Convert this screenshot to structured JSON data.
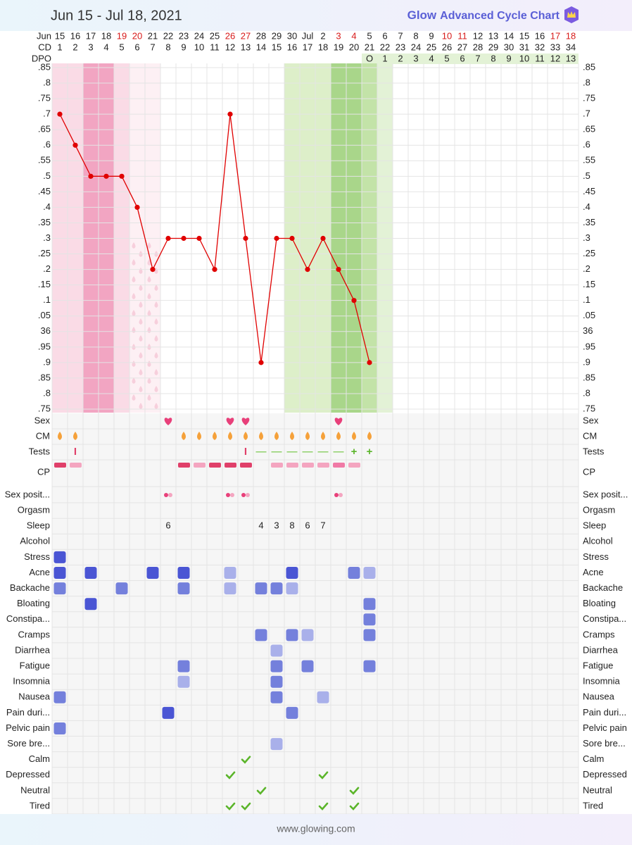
{
  "header": {
    "title": "Jun 15 - Jul 18, 2021",
    "brand": "Glow",
    "subtitle": "Advanced Cycle Chart"
  },
  "footer": "www.glowing.com",
  "chart_data": {
    "type": "line",
    "row_labels": {
      "date": "Jun",
      "cd": "CD",
      "dpo": "DPO"
    },
    "categories": [
      "15",
      "16",
      "17",
      "18",
      "19",
      "20",
      "21",
      "22",
      "23",
      "24",
      "25",
      "26",
      "27",
      "28",
      "29",
      "30",
      "Jul",
      "2",
      "3",
      "4",
      "5",
      "6",
      "7",
      "8",
      "9",
      "10",
      "11",
      "12",
      "13",
      "14",
      "15",
      "16",
      "17",
      "18"
    ],
    "category_colors": [
      "#222",
      "#222",
      "#222",
      "#222",
      "#d81b1b",
      "#d81b1b",
      "#222",
      "#222",
      "#222",
      "#222",
      "#222",
      "#d81b1b",
      "#d81b1b",
      "#222",
      "#222",
      "#222",
      "#222",
      "#222",
      "#d81b1b",
      "#d81b1b",
      "#222",
      "#222",
      "#222",
      "#222",
      "#222",
      "#d81b1b",
      "#d81b1b",
      "#222",
      "#222",
      "#222",
      "#222",
      "#222",
      "#d81b1b",
      "#d81b1b"
    ],
    "cd": [
      1,
      2,
      3,
      4,
      5,
      6,
      7,
      8,
      9,
      10,
      11,
      12,
      13,
      14,
      15,
      16,
      17,
      18,
      19,
      20,
      21,
      22,
      23,
      24,
      25,
      26,
      27,
      28,
      29,
      30,
      31,
      32,
      33,
      34
    ],
    "dpo": [
      null,
      null,
      null,
      null,
      null,
      null,
      null,
      null,
      null,
      null,
      null,
      null,
      null,
      null,
      null,
      null,
      null,
      null,
      null,
      null,
      "O",
      1,
      2,
      3,
      4,
      5,
      6,
      7,
      8,
      9,
      10,
      11,
      12,
      13
    ],
    "dpo_color": "#e3f2d6",
    "column_shading": [
      "#fadbe6",
      "#fadbe6",
      "#f2a5c2",
      "#f2a5c2",
      "#fadbe6",
      "#fdf0f4",
      "#fdf0f4",
      null,
      null,
      null,
      null,
      null,
      null,
      null,
      null,
      "#ddefc9",
      "#ddefc9",
      "#ddefc9",
      "#a9d68a",
      "#a9d68a",
      "#c3e3a8",
      "#e3f2d6",
      null,
      null,
      null,
      null,
      null,
      null,
      null,
      null,
      null,
      null,
      null,
      null
    ],
    "values": [
      36.7,
      36.6,
      36.5,
      36.5,
      36.5,
      36.4,
      36.2,
      36.3,
      36.3,
      36.3,
      36.2,
      36.7,
      36.3,
      35.9,
      36.3,
      36.3,
      36.2,
      36.3,
      36.2,
      36.1,
      35.9,
      null,
      null,
      null,
      null,
      null,
      null,
      null,
      null,
      null,
      null,
      null,
      null,
      null
    ],
    "color": "#e00000",
    "ylim": [
      35.75,
      36.85
    ],
    "yticks": [
      {
        "value": 36.85,
        "label": ".85"
      },
      {
        "value": 36.8,
        "label": ".8"
      },
      {
        "value": 36.75,
        "label": ".75"
      },
      {
        "value": 36.7,
        "label": ".7"
      },
      {
        "value": 36.65,
        "label": ".65"
      },
      {
        "value": 36.6,
        "label": ".6"
      },
      {
        "value": 36.55,
        "label": ".55"
      },
      {
        "value": 36.5,
        "label": ".5"
      },
      {
        "value": 36.45,
        "label": ".45"
      },
      {
        "value": 36.4,
        "label": ".4"
      },
      {
        "value": 36.35,
        "label": ".35"
      },
      {
        "value": 36.3,
        "label": ".3"
      },
      {
        "value": 36.25,
        "label": ".25"
      },
      {
        "value": 36.2,
        "label": ".2"
      },
      {
        "value": 36.15,
        "label": ".15"
      },
      {
        "value": 36.1,
        "label": ".1"
      },
      {
        "value": 36.05,
        "label": ".05"
      },
      36,
      {
        "value": 35.95,
        "label": ".95"
      },
      {
        "value": 35.9,
        "label": ".9"
      },
      {
        "value": 35.85,
        "label": ".85"
      },
      {
        "value": 35.8,
        "label": ".8"
      },
      {
        "value": 35.75,
        "label": ".75"
      }
    ],
    "grid": true
  },
  "symptoms": {
    "rows": [
      {
        "label": "Sex",
        "type": "heart",
        "color": "#e8407a",
        "marks": [
          {
            "cd": 8
          },
          {
            "cd": 12
          },
          {
            "cd": 13
          },
          {
            "cd": 19
          }
        ]
      },
      {
        "label": "CM",
        "type": "drop",
        "color": "#f5a13a",
        "marks": [
          {
            "cd": 1
          },
          {
            "cd": 2
          },
          {
            "cd": 9
          },
          {
            "cd": 10
          },
          {
            "cd": 11
          },
          {
            "cd": 12
          },
          {
            "cd": 13
          },
          {
            "cd": 14
          },
          {
            "cd": 15
          },
          {
            "cd": 16
          },
          {
            "cd": 17
          },
          {
            "cd": 18
          },
          {
            "cd": 19
          },
          {
            "cd": 20
          },
          {
            "cd": 21
          }
        ]
      },
      {
        "label": "Tests",
        "type": "text",
        "marks": [
          {
            "cd": 2,
            "text": "I",
            "color": "#e0406a"
          },
          {
            "cd": 13,
            "text": "I",
            "color": "#e0406a"
          },
          {
            "cd": 14,
            "text": "—",
            "color": "#8fd06a"
          },
          {
            "cd": 15,
            "text": "—",
            "color": "#8fd06a"
          },
          {
            "cd": 16,
            "text": "—",
            "color": "#8fd06a"
          },
          {
            "cd": 17,
            "text": "—",
            "color": "#8fd06a"
          },
          {
            "cd": 18,
            "text": "—",
            "color": "#8fd06a"
          },
          {
            "cd": 19,
            "text": "—",
            "color": "#8fd06a"
          },
          {
            "cd": 20,
            "text": "+",
            "color": "#5bb52a"
          },
          {
            "cd": 21,
            "text": "+",
            "color": "#5bb52a"
          }
        ]
      },
      {
        "label": "CP",
        "type": "bar",
        "marks": [
          {
            "cd": 1,
            "color": "#e0406a"
          },
          {
            "cd": 2,
            "color": "#f4a5c0"
          },
          {
            "cd": 9,
            "color": "#e0406a"
          },
          {
            "cd": 10,
            "color": "#f4a5c0"
          },
          {
            "cd": 11,
            "color": "#e0406a"
          },
          {
            "cd": 12,
            "color": "#e0406a"
          },
          {
            "cd": 13,
            "color": "#e0406a"
          },
          {
            "cd": 15,
            "color": "#f4a5c0"
          },
          {
            "cd": 16,
            "color": "#f4a5c0"
          },
          {
            "cd": 17,
            "color": "#f4a5c0"
          },
          {
            "cd": 18,
            "color": "#f4a5c0"
          },
          {
            "cd": 19,
            "color": "#f07aa6"
          },
          {
            "cd": 20,
            "color": "#f4a5c0"
          }
        ]
      },
      {
        "label": "Sex posit...",
        "type": "icon",
        "color": "#e8407a",
        "marks": [
          {
            "cd": 8
          },
          {
            "cd": 12
          },
          {
            "cd": 13
          },
          {
            "cd": 19
          }
        ]
      },
      {
        "label": "Orgasm",
        "type": "square",
        "marks": []
      },
      {
        "label": "Sleep",
        "type": "number",
        "marks": [
          {
            "cd": 8,
            "value": 6
          },
          {
            "cd": 14,
            "value": 4
          },
          {
            "cd": 15,
            "value": 3
          },
          {
            "cd": 16,
            "value": 8
          },
          {
            "cd": 17,
            "value": 6
          },
          {
            "cd": 18,
            "value": 7
          }
        ]
      },
      {
        "label": "Alcohol",
        "type": "square",
        "marks": []
      },
      {
        "label": "Stress",
        "type": "square",
        "marks": [
          {
            "cd": 1,
            "color": "#4a55d4"
          }
        ]
      },
      {
        "label": "Acne",
        "type": "square",
        "marks": [
          {
            "cd": 1,
            "color": "#4a55d4"
          },
          {
            "cd": 3,
            "color": "#4a55d4"
          },
          {
            "cd": 7,
            "color": "#4a55d4"
          },
          {
            "cd": 9,
            "color": "#4a55d4"
          },
          {
            "cd": 12,
            "color": "#a9b0ea"
          },
          {
            "cd": 16,
            "color": "#4a55d4"
          },
          {
            "cd": 20,
            "color": "#7480dc"
          },
          {
            "cd": 21,
            "color": "#a9b0ea"
          }
        ]
      },
      {
        "label": "Backache",
        "type": "square",
        "marks": [
          {
            "cd": 1,
            "color": "#7480dc"
          },
          {
            "cd": 5,
            "color": "#7480dc"
          },
          {
            "cd": 9,
            "color": "#7480dc"
          },
          {
            "cd": 12,
            "color": "#a9b0ea"
          },
          {
            "cd": 14,
            "color": "#7480dc"
          },
          {
            "cd": 15,
            "color": "#7480dc"
          },
          {
            "cd": 16,
            "color": "#a9b0ea"
          }
        ]
      },
      {
        "label": "Bloating",
        "type": "square",
        "marks": [
          {
            "cd": 3,
            "color": "#4a55d4"
          },
          {
            "cd": 21,
            "color": "#7480dc"
          }
        ]
      },
      {
        "label": "Constipa...",
        "type": "square",
        "marks": [
          {
            "cd": 21,
            "color": "#7480dc"
          }
        ]
      },
      {
        "label": "Cramps",
        "type": "square",
        "marks": [
          {
            "cd": 14,
            "color": "#7480dc"
          },
          {
            "cd": 16,
            "color": "#7480dc"
          },
          {
            "cd": 17,
            "color": "#a9b0ea"
          },
          {
            "cd": 21,
            "color": "#7480dc"
          }
        ]
      },
      {
        "label": "Diarrhea",
        "type": "square",
        "marks": [
          {
            "cd": 15,
            "color": "#a9b0ea"
          }
        ]
      },
      {
        "label": "Fatigue",
        "type": "square",
        "marks": [
          {
            "cd": 9,
            "color": "#7480dc"
          },
          {
            "cd": 15,
            "color": "#7480dc"
          },
          {
            "cd": 17,
            "color": "#7480dc"
          },
          {
            "cd": 21,
            "color": "#7480dc"
          }
        ]
      },
      {
        "label": "Insomnia",
        "type": "square",
        "marks": [
          {
            "cd": 9,
            "color": "#a9b0ea"
          },
          {
            "cd": 15,
            "color": "#7480dc"
          }
        ]
      },
      {
        "label": "Nausea",
        "type": "square",
        "marks": [
          {
            "cd": 1,
            "color": "#7480dc"
          },
          {
            "cd": 15,
            "color": "#7480dc"
          },
          {
            "cd": 18,
            "color": "#a9b0ea"
          }
        ]
      },
      {
        "label": "Pain duri...",
        "type": "square",
        "marks": [
          {
            "cd": 8,
            "color": "#4a55d4"
          },
          {
            "cd": 16,
            "color": "#7480dc"
          }
        ]
      },
      {
        "label": "Pelvic pain",
        "type": "square",
        "marks": [
          {
            "cd": 1,
            "color": "#7480dc"
          }
        ]
      },
      {
        "label": "Sore bre...",
        "type": "square",
        "marks": [
          {
            "cd": 15,
            "color": "#a9b0ea"
          }
        ]
      },
      {
        "label": "Calm",
        "type": "check",
        "color": "#5bb52a",
        "marks": [
          {
            "cd": 13
          }
        ]
      },
      {
        "label": "Depressed",
        "type": "check",
        "color": "#5bb52a",
        "marks": [
          {
            "cd": 12
          },
          {
            "cd": 18
          }
        ]
      },
      {
        "label": "Neutral",
        "type": "check",
        "color": "#5bb52a",
        "marks": [
          {
            "cd": 14
          },
          {
            "cd": 20
          }
        ]
      },
      {
        "label": "Tired",
        "type": "check",
        "color": "#5bb52a",
        "marks": [
          {
            "cd": 12
          },
          {
            "cd": 13
          },
          {
            "cd": 18
          },
          {
            "cd": 20
          }
        ]
      }
    ]
  }
}
